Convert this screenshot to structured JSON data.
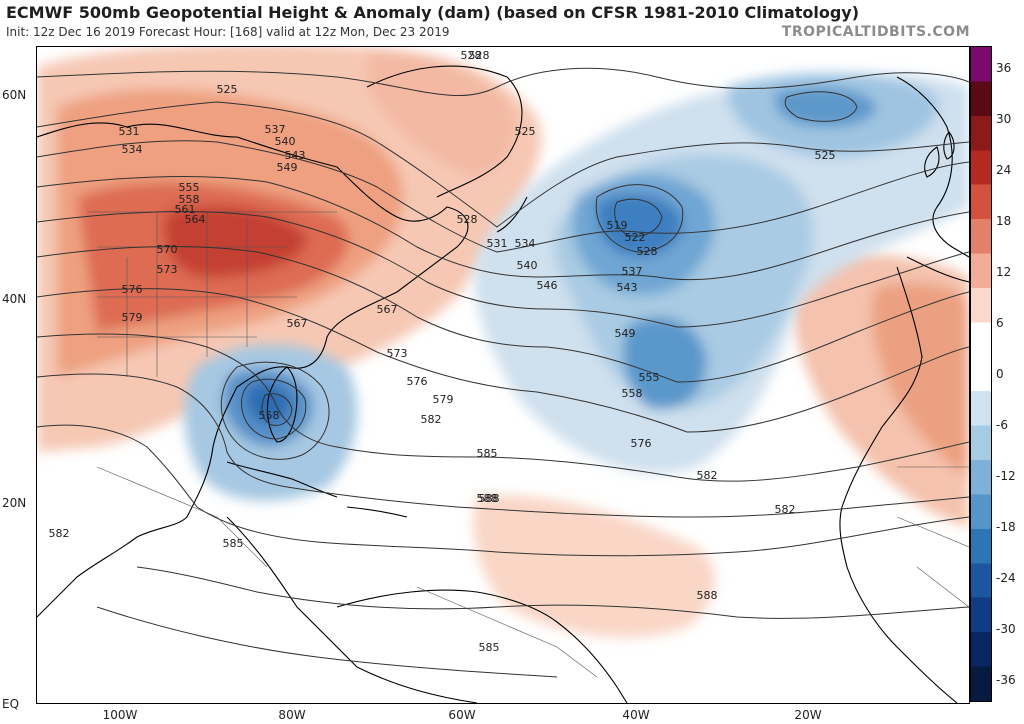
{
  "header": {
    "title": "ECMWF 500mb Geopotential Height & Anomaly (dam) (based on CFSR 1981-2010 Climatology)",
    "subtitle": "Init: 12z Dec 16 2019   Forecast Hour: [168]   valid at 12z Mon, Dec 23 2019",
    "source": "TROPICALTIDBITS.COM"
  },
  "map": {
    "lat_labels": [
      {
        "text": "60N"
      },
      {
        "text": "40N"
      },
      {
        "text": "20N"
      },
      {
        "text": "EQ"
      }
    ],
    "lon_labels": [
      {
        "text": "100W"
      },
      {
        "text": "80W"
      },
      {
        "text": "60W"
      },
      {
        "text": "40W"
      },
      {
        "text": "20W"
      }
    ],
    "contour_labels": [
      "528",
      "525",
      "528",
      "531",
      "534",
      "537",
      "540",
      "543",
      "549",
      "555",
      "558",
      "561",
      "564",
      "570",
      "573",
      "576",
      "579",
      "567",
      "567",
      "573",
      "576",
      "579",
      "582",
      "585",
      "588",
      "582",
      "558",
      "528",
      "531",
      "534",
      "540",
      "546",
      "519",
      "522",
      "528",
      "537",
      "543",
      "549",
      "555",
      "558",
      "576",
      "525",
      "525",
      "582",
      "585",
      "588",
      "588",
      "585",
      "582"
    ]
  },
  "colorbar": {
    "ticks": [
      "36",
      "30",
      "24",
      "18",
      "12",
      "6",
      "0",
      "-6",
      "-12",
      "-18",
      "-24",
      "-30",
      "-36"
    ],
    "colors": [
      "#7b0a6e",
      "#5a0a14",
      "#8b1a1a",
      "#b42a22",
      "#d2523e",
      "#e3806a",
      "#f1ad97",
      "#fad9cc",
      "#ffffff",
      "#ffffff",
      "#cfe2ef",
      "#a8cbe4",
      "#7fb0d8",
      "#5695c9",
      "#2e75b6",
      "#1c56a0",
      "#0f3c82",
      "#0a2660",
      "#071a40"
    ]
  }
}
